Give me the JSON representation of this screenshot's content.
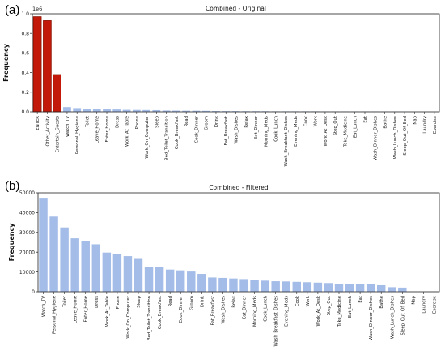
{
  "panels": [
    {
      "label": "(a)"
    },
    {
      "label": "(b)"
    }
  ],
  "chart_data": [
    {
      "type": "bar",
      "title": "Combined - Original",
      "xlabel": "",
      "ylabel": "Frequency",
      "scale_note": "1e6",
      "ylim": [
        0,
        1.0
      ],
      "yticks": [
        "0.0",
        "0.2",
        "0.4",
        "0.6",
        "0.8",
        "1.0"
      ],
      "grid": false,
      "colors": {
        "highlight": "#c2190b",
        "highlight_edge": "#8a1000",
        "bar": "#a4bce8"
      },
      "categories": [
        "ENTER",
        "Other_Activity",
        "Entertain_Guests",
        "Watch_TV",
        "Personal_Hygiene",
        "Toilet",
        "Leave_Home",
        "Enter_Home",
        "Dress",
        "Work_At_Table",
        "Phone",
        "Work_On_Computer",
        "Sleep",
        "Bed_Toilet_Transition",
        "Cook_Breakfast",
        "Read",
        "Cook_Dinner",
        "Groom",
        "Drink",
        "Eat_Breakfast",
        "Wash_Dishes",
        "Relax",
        "Eat_Dinner",
        "Morning_Meds",
        "Cook_Lunch",
        "Wash_Breakfast_Dishes",
        "Evening_Meds",
        "Cook",
        "Work",
        "Work_At_Desk",
        "Step_Out",
        "Take_Medicine",
        "Eat_Lunch",
        "Eat",
        "Wash_Dinner_Dishes",
        "Bathe",
        "Wash_Lunch_Dishes",
        "Sleep_Out_Of_Bed",
        "Nap",
        "Laundry",
        "Exercise"
      ],
      "values": [
        0.97,
        0.93,
        0.38,
        0.048,
        0.038,
        0.033,
        0.027,
        0.026,
        0.024,
        0.02,
        0.019,
        0.018,
        0.017,
        0.013,
        0.012,
        0.011,
        0.011,
        0.01,
        0.008,
        0.007,
        0.007,
        0.006,
        0.006,
        0.006,
        0.005,
        0.005,
        0.005,
        0.005,
        0.005,
        0.004,
        0.004,
        0.004,
        0.004,
        0.004,
        0.004,
        0.003,
        0.003,
        0.002,
        0.0005,
        0.0003,
        0.0002
      ],
      "highlighted": [
        "ENTER",
        "Other_Activity",
        "Entertain_Guests"
      ]
    },
    {
      "type": "bar",
      "title": "Combined - Filtered",
      "xlabel": "",
      "ylabel": "Frequency",
      "ylim": [
        0,
        50000
      ],
      "yticks": [
        "0",
        "10000",
        "20000",
        "30000",
        "40000",
        "50000"
      ],
      "grid": false,
      "colors": {
        "bar": "#a4bce8"
      },
      "categories": [
        "Watch_TV",
        "Personal_Hygiene",
        "Toilet",
        "Leave_Home",
        "Enter_Home",
        "Dress",
        "Work_At_Table",
        "Phone",
        "Work_On_Computer",
        "Sleep",
        "Bed_Toilet_Transition",
        "Cook_Breakfast",
        "Read",
        "Cook_Dinner",
        "Groom",
        "Drink",
        "Eat_Breakfast",
        "Wash_Dishes",
        "Relax",
        "Eat_Dinner",
        "Morning_Meds",
        "Cook_Lunch",
        "Wash_Breakfast_Dishes",
        "Evening_Meds",
        "Cook",
        "Work",
        "Work_At_Desk",
        "Step_Out",
        "Take_Medicine",
        "Eat_Lunch",
        "Eat",
        "Wash_Dinner_Dishes",
        "Bathe",
        "Wash_Lunch_Dishes",
        "Sleep_Out_Of_Bed",
        "Nap",
        "Laundry",
        "Exercise"
      ],
      "values": [
        47500,
        38000,
        32500,
        27000,
        25500,
        24000,
        19800,
        19000,
        18000,
        17000,
        12500,
        12300,
        11200,
        10800,
        10200,
        9000,
        7200,
        7000,
        6700,
        6400,
        6000,
        5600,
        5300,
        5200,
        5000,
        4800,
        4600,
        4400,
        4000,
        3900,
        3800,
        3700,
        3300,
        2300,
        2100,
        100,
        80,
        60
      ]
    }
  ]
}
